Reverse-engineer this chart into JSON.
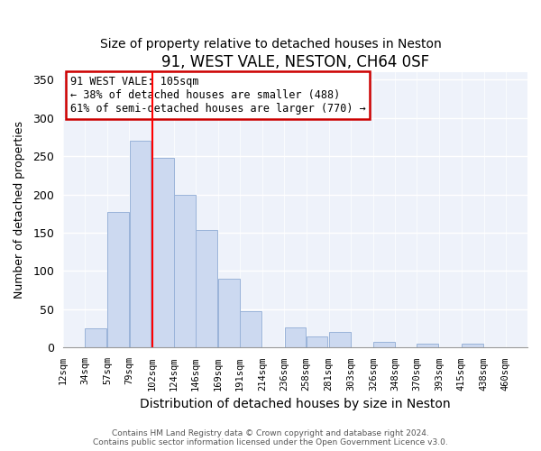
{
  "title": "91, WEST VALE, NESTON, CH64 0SF",
  "subtitle": "Size of property relative to detached houses in Neston",
  "xlabel": "Distribution of detached houses by size in Neston",
  "ylabel": "Number of detached properties",
  "bar_color": "#ccd9f0",
  "bar_edge_color": "#99b3d9",
  "vline_x": 102,
  "vline_color": "red",
  "annotation_title": "91 WEST VALE: 105sqm",
  "annotation_line1": "← 38% of detached houses are smaller (488)",
  "annotation_line2": "61% of semi-detached houses are larger (770) →",
  "annotation_box_color": "white",
  "annotation_box_edge": "#cc0000",
  "bins_left": [
    12,
    34,
    57,
    79,
    102,
    124,
    146,
    169,
    191,
    214,
    236,
    258,
    281,
    303,
    326,
    348,
    370,
    393,
    415,
    438
  ],
  "bin_width": 22,
  "bar_heights": [
    0,
    25,
    177,
    270,
    248,
    199,
    153,
    90,
    48,
    0,
    26,
    15,
    21,
    0,
    8,
    0,
    5,
    0,
    5,
    0
  ],
  "ylim": [
    0,
    360
  ],
  "yticks": [
    0,
    50,
    100,
    150,
    200,
    250,
    300,
    350
  ],
  "xtick_labels": [
    "12sqm",
    "34sqm",
    "57sqm",
    "79sqm",
    "102sqm",
    "124sqm",
    "146sqm",
    "169sqm",
    "191sqm",
    "214sqm",
    "236sqm",
    "258sqm",
    "281sqm",
    "303sqm",
    "326sqm",
    "348sqm",
    "370sqm",
    "393sqm",
    "415sqm",
    "438sqm",
    "460sqm"
  ],
  "footer_line1": "Contains HM Land Registry data © Crown copyright and database right 2024.",
  "footer_line2": "Contains public sector information licensed under the Open Government Licence v3.0.",
  "bg_color": "#ffffff",
  "plot_bg_color": "#eef2fa",
  "grid_color": "#ffffff",
  "title_fontsize": 12,
  "subtitle_fontsize": 10
}
